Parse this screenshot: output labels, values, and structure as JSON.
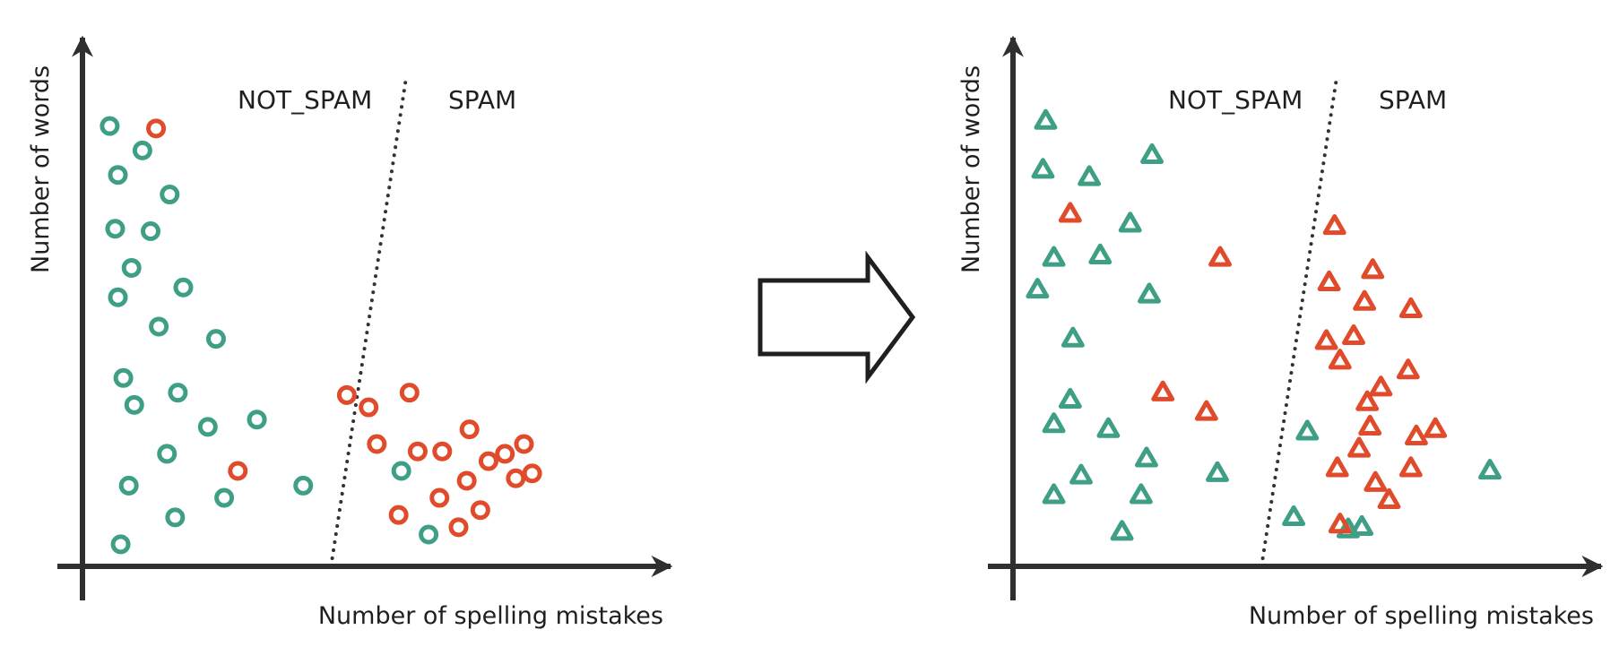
{
  "colors": {
    "not_spam": "#3f9f86",
    "spam": "#e04b2b",
    "axis": "#2f2f2f",
    "arrow": "#1f1f1f",
    "boundary": "#333333"
  },
  "chart_data": [
    {
      "type": "scatter",
      "marker": "circle",
      "xlabel": "Number of spelling mistakes",
      "ylabel": "Number of words",
      "region_labels": {
        "left": "NOT_SPAM",
        "right": "SPAM"
      },
      "xlim": [
        0,
        100
      ],
      "ylim": [
        0,
        100
      ],
      "boundary": [
        [
          45.6,
          0
        ],
        [
          59.4,
          100
        ]
      ],
      "series": [
        {
          "class": "not_spam",
          "points": [
            [
              5,
              90
            ],
            [
              11,
              85
            ],
            [
              6.5,
              80
            ],
            [
              16,
              76
            ],
            [
              6,
              69
            ],
            [
              12.5,
              68.5
            ],
            [
              9,
              61
            ],
            [
              18.5,
              57
            ],
            [
              6.5,
              55
            ],
            [
              14,
              49
            ],
            [
              24.5,
              46.5
            ],
            [
              7.5,
              38.5
            ],
            [
              17.5,
              35.5
            ],
            [
              9.5,
              33
            ],
            [
              23,
              28.5
            ],
            [
              32,
              30
            ],
            [
              15.5,
              23
            ],
            [
              8.5,
              16.5
            ],
            [
              26,
              14
            ],
            [
              40.5,
              16.5
            ],
            [
              17,
              10
            ],
            [
              7,
              4.5
            ],
            [
              58.5,
              19.5
            ],
            [
              63.5,
              6.5
            ]
          ]
        },
        {
          "class": "spam",
          "points": [
            [
              13.5,
              89.5
            ],
            [
              28.5,
              19.5
            ],
            [
              48.5,
              35
            ],
            [
              52.5,
              32.5
            ],
            [
              60,
              35.5
            ],
            [
              54,
              25
            ],
            [
              61.5,
              23.5
            ],
            [
              71,
              28
            ],
            [
              77.5,
              23
            ],
            [
              66,
              23.5
            ],
            [
              70.5,
              17.5
            ],
            [
              74.5,
              21.5
            ],
            [
              79.5,
              18
            ],
            [
              81,
              25
            ],
            [
              65.5,
              14
            ],
            [
              73,
              11.5
            ],
            [
              58,
              10.5
            ],
            [
              69,
              8
            ],
            [
              82.5,
              19
            ]
          ]
        }
      ]
    },
    {
      "type": "scatter",
      "marker": "triangle",
      "xlabel": "Number of spelling mistakes",
      "ylabel": "Number of words",
      "region_labels": {
        "left": "NOT_SPAM",
        "right": "SPAM"
      },
      "xlim": [
        0,
        100
      ],
      "ylim": [
        0,
        100
      ],
      "boundary": [
        [
          45.6,
          0
        ],
        [
          59.4,
          100
        ]
      ],
      "series": [
        {
          "class": "not_spam",
          "points": [
            [
              6,
              91
            ],
            [
              5.5,
              81
            ],
            [
              14,
              79.5
            ],
            [
              25.5,
              84
            ],
            [
              21.5,
              70
            ],
            [
              7.5,
              63
            ],
            [
              16,
              63.5
            ],
            [
              4.5,
              56.5
            ],
            [
              25,
              55.5
            ],
            [
              11,
              46.5
            ],
            [
              10.5,
              34
            ],
            [
              7.5,
              29
            ],
            [
              17.5,
              28
            ],
            [
              24.5,
              22
            ],
            [
              12.5,
              18.5
            ],
            [
              37.5,
              19
            ],
            [
              7.5,
              14.5
            ],
            [
              23.5,
              14.5
            ],
            [
              20,
              7
            ],
            [
              51.5,
              10
            ],
            [
              61.5,
              7.5
            ],
            [
              54,
              27.5
            ],
            [
              87.5,
              19.5
            ],
            [
              64,
              8
            ]
          ]
        },
        {
          "class": "spam",
          "points": [
            [
              10.5,
              72
            ],
            [
              38,
              63
            ],
            [
              59,
              69.5
            ],
            [
              58,
              58
            ],
            [
              66,
              60.5
            ],
            [
              64.5,
              54
            ],
            [
              73,
              52.5
            ],
            [
              57.5,
              46
            ],
            [
              62.5,
              47
            ],
            [
              60,
              42
            ],
            [
              72.5,
              40
            ],
            [
              67.5,
              36.5
            ],
            [
              65,
              33.5
            ],
            [
              27.5,
              35.5
            ],
            [
              35.5,
              31.5
            ],
            [
              65.5,
              28.5
            ],
            [
              77.5,
              28
            ],
            [
              74,
              26.5
            ],
            [
              63.5,
              24
            ],
            [
              59.5,
              20
            ],
            [
              73,
              20
            ],
            [
              66.5,
              17
            ],
            [
              69,
              13.5
            ],
            [
              60,
              8.5
            ]
          ]
        }
      ]
    }
  ]
}
